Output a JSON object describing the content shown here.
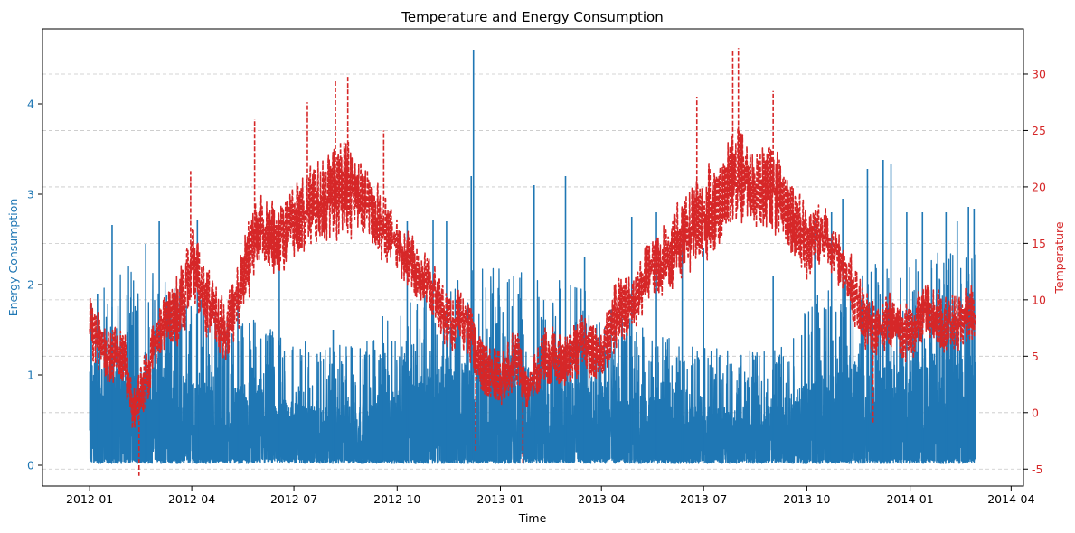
{
  "chart_data": {
    "type": "line",
    "title": "Temperature and Energy Consumption",
    "xlabel": "Time",
    "ylabel_left": "Energy Consumption",
    "ylabel_right": "Temperature",
    "x_ticks": [
      "2012-01",
      "2012-04",
      "2012-07",
      "2012-10",
      "2013-01",
      "2013-04",
      "2013-07",
      "2013-10",
      "2014-01",
      "2014-04"
    ],
    "y_left_ticks": [
      0,
      1,
      2,
      3,
      4
    ],
    "y_right_ticks": [
      -5,
      0,
      5,
      10,
      15,
      20,
      25,
      30
    ],
    "y_left_range": [
      -0.23,
      4.83
    ],
    "y_right_range": [
      -6.5,
      34.0
    ],
    "x_range": [
      "2011-11-20",
      "2014-04-12"
    ],
    "grid": true,
    "colors": {
      "energy": "#1f77b4",
      "temperature": "#d62728"
    },
    "series": [
      {
        "key": "energy",
        "axis": "left",
        "style": "solid",
        "x": [
          "2012-01-01",
          "2012-02-01",
          "2012-03-01",
          "2012-04-01",
          "2012-05-01",
          "2012-06-01",
          "2012-07-01",
          "2012-08-01",
          "2012-09-01",
          "2012-10-01",
          "2012-11-01",
          "2012-12-01",
          "2013-01-01",
          "2013-02-01",
          "2013-03-01",
          "2013-04-01",
          "2013-05-01",
          "2013-06-01",
          "2013-07-01",
          "2013-08-01",
          "2013-09-01",
          "2013-10-01",
          "2013-11-01",
          "2013-12-01",
          "2014-01-01",
          "2014-02-01",
          "2014-02-28"
        ],
        "base_max": [
          1.7,
          1.9,
          1.9,
          1.6,
          1.4,
          1.3,
          1.1,
          1.0,
          1.1,
          1.4,
          1.7,
          1.9,
          1.9,
          1.8,
          1.8,
          1.5,
          1.3,
          1.1,
          1.0,
          1.0,
          1.1,
          1.5,
          1.8,
          2.0,
          2.0,
          2.1,
          2.2
        ],
        "peaks": [
          [
            "2012-01-08",
            1.9
          ],
          [
            "2012-01-21",
            2.66
          ],
          [
            "2012-02-20",
            2.45
          ],
          [
            "2012-03-03",
            2.7
          ],
          [
            "2012-04-06",
            2.72
          ],
          [
            "2012-05-12",
            1.95
          ],
          [
            "2012-06-18",
            2.2
          ],
          [
            "2012-08-05",
            1.5
          ],
          [
            "2012-09-18",
            1.65
          ],
          [
            "2012-10-10",
            2.7
          ],
          [
            "2012-11-02",
            2.72
          ],
          [
            "2012-11-14",
            2.7
          ],
          [
            "2012-12-08",
            4.6
          ],
          [
            "2012-12-06",
            3.2
          ],
          [
            "2013-01-17",
            1.9
          ],
          [
            "2013-01-31",
            3.1
          ],
          [
            "2013-02-28",
            3.2
          ],
          [
            "2013-03-17",
            2.3
          ],
          [
            "2013-04-28",
            2.75
          ],
          [
            "2013-05-20",
            2.8
          ],
          [
            "2013-06-12",
            2.5
          ],
          [
            "2013-07-01",
            2.4
          ],
          [
            "2013-09-01",
            2.1
          ],
          [
            "2013-10-08",
            2.7
          ],
          [
            "2013-10-23",
            2.8
          ],
          [
            "2013-11-02",
            2.95
          ],
          [
            "2013-11-24",
            3.28
          ],
          [
            "2013-12-08",
            3.38
          ],
          [
            "2013-12-15",
            3.33
          ],
          [
            "2013-12-29",
            2.8
          ],
          [
            "2014-01-12",
            2.8
          ],
          [
            "2014-02-02",
            2.8
          ],
          [
            "2014-02-12",
            2.7
          ],
          [
            "2014-02-22",
            2.86
          ],
          [
            "2014-02-27",
            2.84
          ]
        ]
      },
      {
        "key": "temperature",
        "axis": "right",
        "style": "dashed",
        "x": [
          "2012-01-01",
          "2012-01-15",
          "2012-02-01",
          "2012-02-08",
          "2012-02-20",
          "2012-03-01",
          "2012-03-20",
          "2012-04-01",
          "2012-04-15",
          "2012-05-01",
          "2012-05-20",
          "2012-06-01",
          "2012-06-15",
          "2012-07-01",
          "2012-07-15",
          "2012-08-01",
          "2012-08-15",
          "2012-09-01",
          "2012-09-15",
          "2012-10-01",
          "2012-10-15",
          "2012-11-01",
          "2012-11-15",
          "2012-12-01",
          "2012-12-15",
          "2013-01-01",
          "2013-01-15",
          "2013-01-25",
          "2013-02-10",
          "2013-03-01",
          "2013-03-15",
          "2013-04-01",
          "2013-04-15",
          "2013-05-01",
          "2013-05-15",
          "2013-06-01",
          "2013-06-15",
          "2013-07-01",
          "2013-07-15",
          "2013-08-01",
          "2013-08-15",
          "2013-09-01",
          "2013-09-15",
          "2013-10-01",
          "2013-10-15",
          "2013-11-01",
          "2013-11-15",
          "2013-12-01",
          "2013-12-15",
          "2014-01-01",
          "2014-01-15",
          "2014-02-01",
          "2014-02-15",
          "2014-02-28"
        ],
        "center": [
          8,
          5,
          5,
          0,
          3,
          7,
          9,
          13,
          10,
          7,
          13,
          17,
          15,
          17,
          18,
          19,
          20,
          19,
          17,
          15,
          13,
          11,
          8,
          8,
          4,
          3,
          5,
          2,
          5,
          5,
          6,
          5,
          9,
          10,
          13,
          14,
          16,
          17,
          19,
          21,
          20,
          20,
          18,
          15,
          16,
          13,
          10,
          7,
          8,
          7,
          9,
          8,
          8,
          9
        ],
        "amplitude": [
          4,
          4,
          4,
          3,
          4,
          4,
          5,
          5,
          5,
          4,
          6,
          5,
          5,
          5,
          6,
          6,
          7,
          5,
          5,
          4,
          4,
          4,
          4,
          4,
          4,
          4,
          4,
          3,
          4,
          4,
          4,
          4,
          5,
          4,
          5,
          5,
          6,
          6,
          7,
          7,
          6,
          6,
          5,
          5,
          4,
          4,
          5,
          4,
          4,
          4,
          4,
          4,
          4,
          4
        ],
        "peaks": [
          [
            "2012-02-14",
            -5.6
          ],
          [
            "2012-03-31",
            21.4
          ],
          [
            "2012-05-27",
            26.0
          ],
          [
            "2012-07-13",
            27.5
          ],
          [
            "2012-08-07",
            29.5
          ],
          [
            "2012-08-18",
            29.8
          ],
          [
            "2012-09-19",
            25.0
          ],
          [
            "2012-12-10",
            -3.5
          ],
          [
            "2013-01-21",
            -4.5
          ],
          [
            "2013-07-27",
            32.0
          ],
          [
            "2013-08-01",
            32.3
          ],
          [
            "2013-09-01",
            28.5
          ],
          [
            "2013-06-25",
            28.0
          ],
          [
            "2013-11-29",
            -1.0
          ]
        ]
      }
    ]
  }
}
